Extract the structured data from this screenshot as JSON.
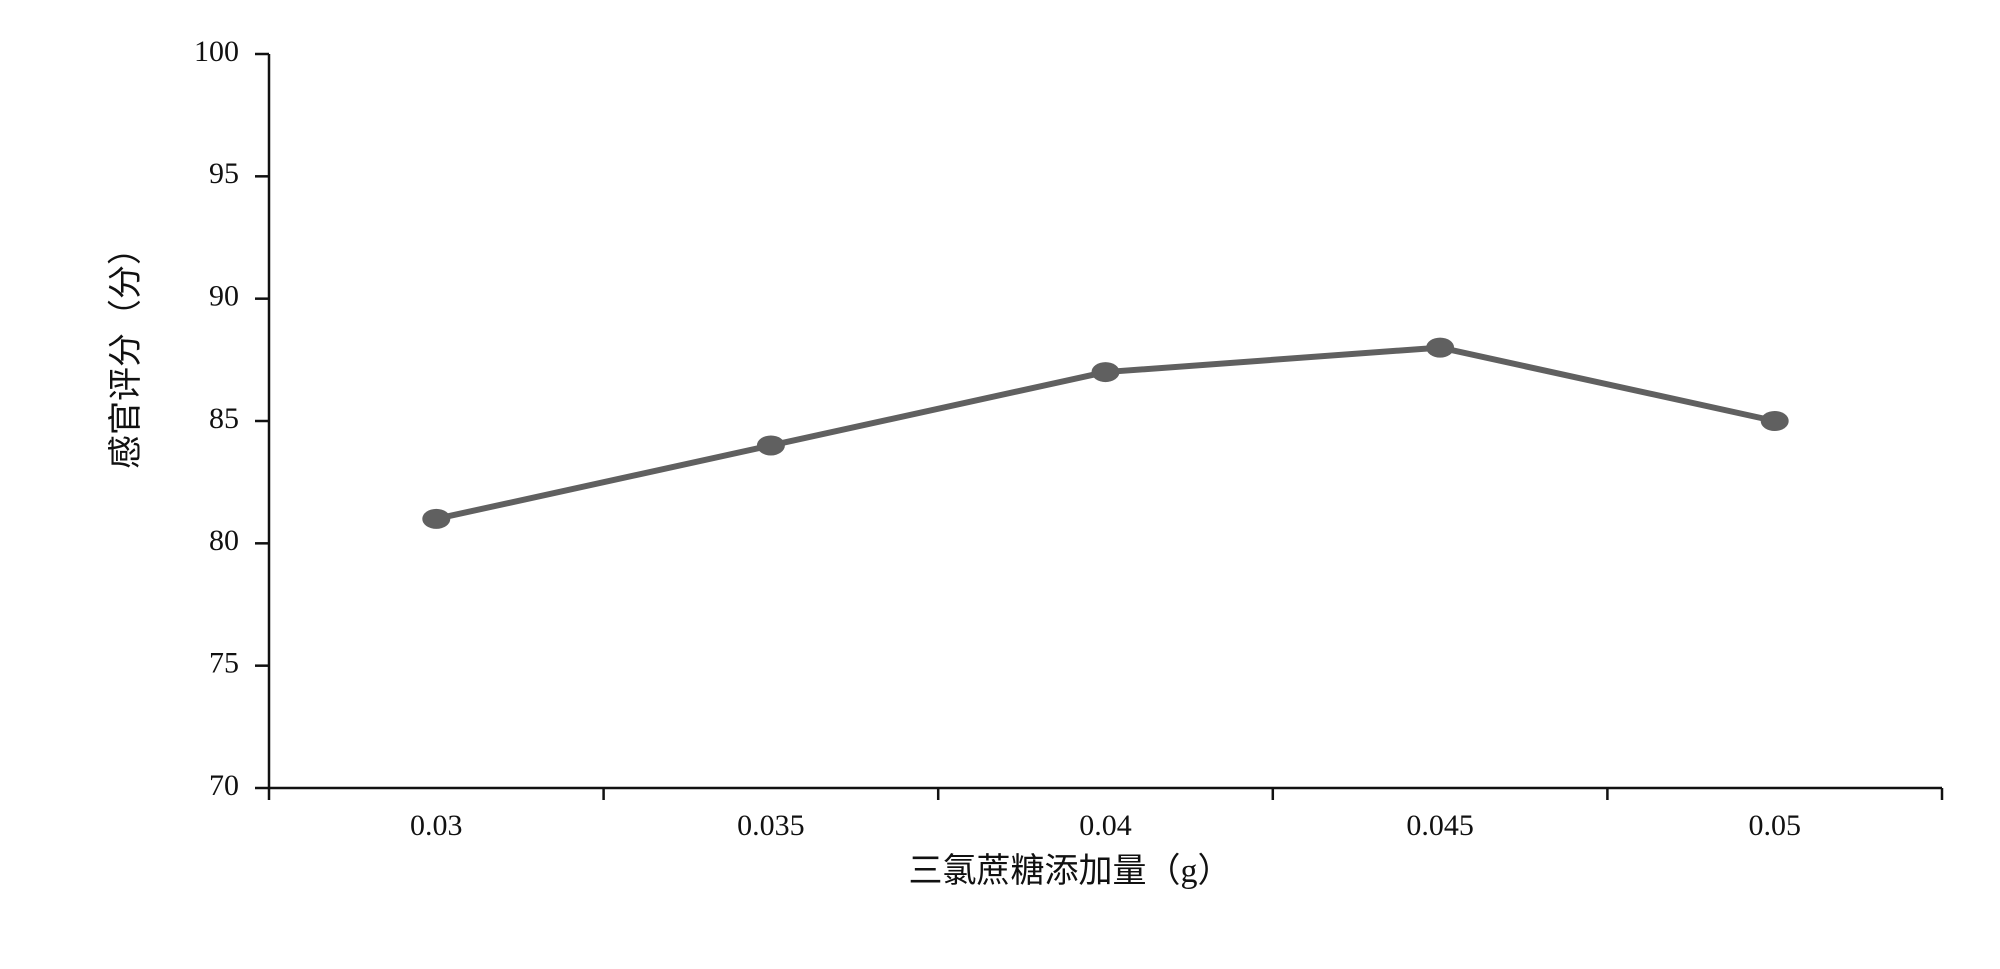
{
  "chart_data": {
    "type": "line",
    "x_label": "三氯蔗糖添加量（g）",
    "y_label": "感官评分（分）",
    "categories": [
      "0.03",
      "0.035",
      "0.04",
      "0.045",
      "0.05"
    ],
    "series": [
      {
        "name": "感官评分",
        "color": "#606060",
        "values": [
          81,
          84,
          87,
          88,
          85
        ]
      }
    ],
    "ylim": [
      70,
      100
    ],
    "yticks": [
      70,
      75,
      80,
      85,
      90,
      95,
      100
    ],
    "grid": false
  }
}
